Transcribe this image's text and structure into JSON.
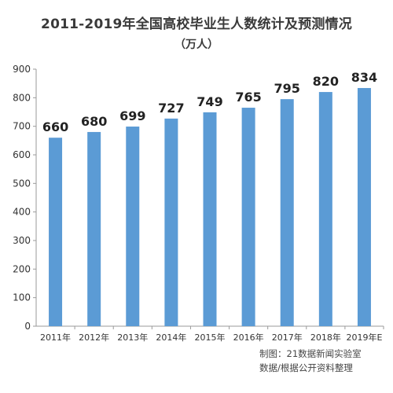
{
  "chart_data": {
    "type": "bar",
    "title": "2011-2019年全国高校毕业生人数统计及预测情况",
    "subtitle": "（万人）",
    "categories": [
      "2011年",
      "2012年",
      "2013年",
      "2014年",
      "2015年",
      "2016年",
      "2017年",
      "2018年",
      "2019年E"
    ],
    "values": [
      660,
      680,
      699,
      727,
      749,
      765,
      795,
      820,
      834
    ],
    "ylim": [
      0,
      900
    ],
    "yticks": [
      0,
      100,
      200,
      300,
      400,
      500,
      600,
      700,
      800,
      900
    ],
    "grid": false,
    "bar_color": "#5b9bd5",
    "label_color": "#222222"
  },
  "footer": {
    "credit_line1": "制图：21数据新闻实验室",
    "credit_line2": "数据/根据公开资料整理"
  }
}
